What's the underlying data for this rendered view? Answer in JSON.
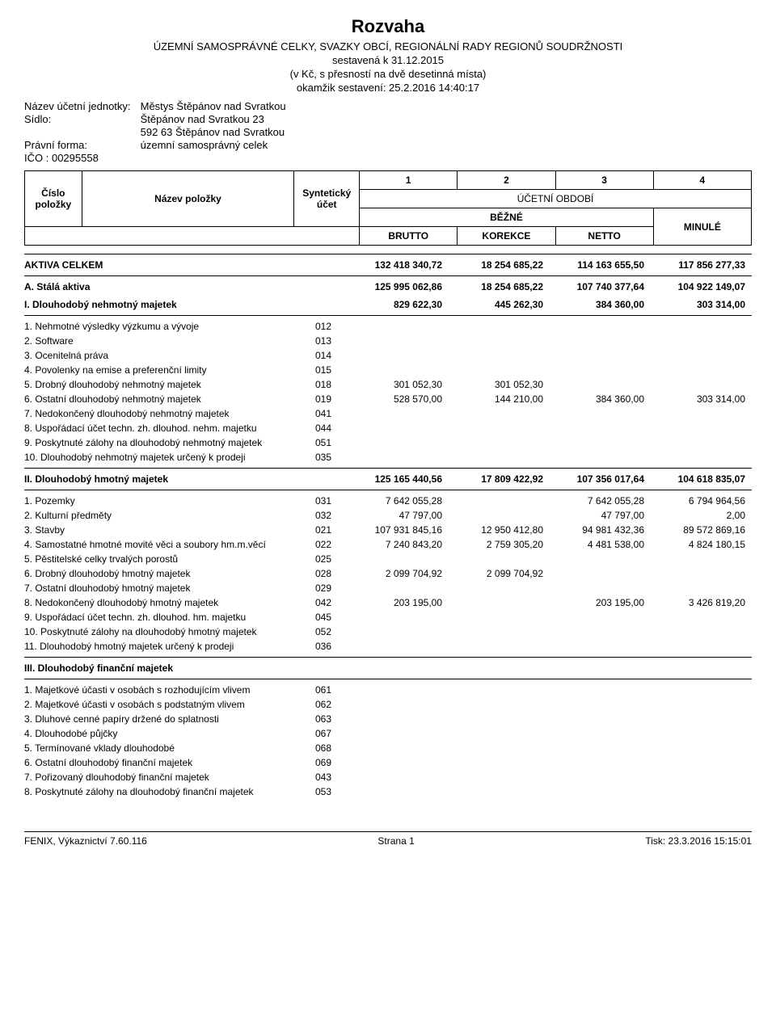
{
  "title": "Rozvaha",
  "subtitle1": "ÚZEMNÍ SAMOSPRÁVNÉ CELKY, SVAZKY OBCÍ, REGIONÁLNÍ RADY REGIONŮ SOUDRŽNOSTI",
  "subtitle2": "sestavená k 31.12.2015",
  "subtitle3": "(v Kč, s přesností na dvě desetinná místa)",
  "subtitle4": "okamžik sestavení: 25.2.2016 14:40:17",
  "meta": {
    "unit_label": "Název účetní jednotky:",
    "unit_value": "Městys Štěpánov nad Svratkou",
    "seat_label": "Sídlo:",
    "seat_value": "Štěpánov nad Svratkou 23",
    "seat_value2": "592 63 Štěpánov nad Svratkou",
    "form_label": "Právní forma:",
    "form_value": "územní samosprávný celek",
    "ico_label": "IČO :",
    "ico_value": "00295558"
  },
  "header": {
    "col_nums": [
      "1",
      "2",
      "3",
      "4"
    ],
    "cislo": "Číslo položky",
    "nazev": "Název položky",
    "synt": "Syntetický účet",
    "period": "ÚČETNÍ OBDOBÍ",
    "bezne": "BĚŽNÉ",
    "minule": "MINULÉ",
    "brutto": "BRUTTO",
    "korekce": "KOREKCE",
    "netto": "NETTO"
  },
  "rows": [
    {
      "type": "total",
      "name": "AKTIVA CELKEM",
      "v1": "132 418 340,72",
      "v2": "18 254 685,22",
      "v3": "114 163 655,50",
      "v4": "117 856 277,33"
    },
    {
      "type": "section",
      "name": "A. Stálá aktiva",
      "v1": "125 995 062,86",
      "v2": "18 254 685,22",
      "v3": "107 740 377,64",
      "v4": "104 922 149,07"
    },
    {
      "type": "subsection",
      "name": "I. Dlouhodobý nehmotný majetek",
      "v1": "829 622,30",
      "v2": "445 262,30",
      "v3": "384 360,00",
      "v4": "303 314,00"
    },
    {
      "type": "hr"
    },
    {
      "type": "item",
      "name": "1. Nehmotné výsledky výzkumu a vývoje",
      "synt": "012"
    },
    {
      "type": "item",
      "name": "2. Software",
      "synt": "013"
    },
    {
      "type": "item",
      "name": "3. Ocenitelná práva",
      "synt": "014"
    },
    {
      "type": "item",
      "name": "4. Povolenky na emise a preferenční limity",
      "synt": "015"
    },
    {
      "type": "item",
      "name": "5. Drobný dlouhodobý nehmotný majetek",
      "synt": "018",
      "v1": "301 052,30",
      "v2": "301 052,30"
    },
    {
      "type": "item",
      "name": "6. Ostatní dlouhodobý nehmotný majetek",
      "synt": "019",
      "v1": "528 570,00",
      "v2": "144 210,00",
      "v3": "384 360,00",
      "v4": "303 314,00"
    },
    {
      "type": "item",
      "name": "7. Nedokončený dlouhodobý nehmotný majetek",
      "synt": "041"
    },
    {
      "type": "item",
      "name": "8. Uspořádací účet techn. zh. dlouhod. nehm. majetku",
      "synt": "044"
    },
    {
      "type": "item",
      "name": "9. Poskytnuté zálohy na dlouhodobý nehmotný majetek",
      "synt": "051"
    },
    {
      "type": "item",
      "name": "10. Dlouhodobý nehmotný majetek určený k prodeji",
      "synt": "035"
    },
    {
      "type": "hr"
    },
    {
      "type": "subsection",
      "name": "II. Dlouhodobý hmotný majetek",
      "v1": "125 165 440,56",
      "v2": "17 809 422,92",
      "v3": "107 356 017,64",
      "v4": "104 618 835,07"
    },
    {
      "type": "hr"
    },
    {
      "type": "item",
      "name": "1. Pozemky",
      "synt": "031",
      "v1": "7 642 055,28",
      "v3": "7 642 055,28",
      "v4": "6 794 964,56"
    },
    {
      "type": "item",
      "name": "2. Kulturní předměty",
      "synt": "032",
      "v1": "47 797,00",
      "v3": "47 797,00",
      "v4": "2,00"
    },
    {
      "type": "item",
      "name": "3. Stavby",
      "synt": "021",
      "v1": "107 931 845,16",
      "v2": "12 950 412,80",
      "v3": "94 981 432,36",
      "v4": "89 572 869,16"
    },
    {
      "type": "item",
      "name": "4. Samostatné hmotné movité věci a soubory hm.m.věcí",
      "synt": "022",
      "v1": "7 240 843,20",
      "v2": "2 759 305,20",
      "v3": "4 481 538,00",
      "v4": "4 824 180,15"
    },
    {
      "type": "item",
      "name": "5. Pěstitelské celky trvalých porostů",
      "synt": "025"
    },
    {
      "type": "item",
      "name": "6. Drobný dlouhodobý hmotný majetek",
      "synt": "028",
      "v1": "2 099 704,92",
      "v2": "2 099 704,92"
    },
    {
      "type": "item",
      "name": "7. Ostatní dlouhodobý hmotný majetek",
      "synt": "029"
    },
    {
      "type": "item",
      "name": "8. Nedokončený dlouhodobý hmotný majetek",
      "synt": "042",
      "v1": "203 195,00",
      "v3": "203 195,00",
      "v4": "3 426 819,20"
    },
    {
      "type": "item",
      "name": "9. Uspořádací účet techn. zh. dlouhod. hm. majetku",
      "synt": "045"
    },
    {
      "type": "item",
      "name": "10. Poskytnuté zálohy na dlouhodobý hmotný majetek",
      "synt": "052"
    },
    {
      "type": "item",
      "name": "11. Dlouhodobý hmotný majetek určený k prodeji",
      "synt": "036"
    },
    {
      "type": "hr"
    },
    {
      "type": "subsection",
      "name": "III. Dlouhodobý finanční majetek"
    },
    {
      "type": "hr"
    },
    {
      "type": "item",
      "name": "1. Majetkové účasti v osobách s rozhodujícím vlivem",
      "synt": "061"
    },
    {
      "type": "item",
      "name": "2. Majetkové účasti v osobách s podstatným vlivem",
      "synt": "062"
    },
    {
      "type": "item",
      "name": "3. Dluhové cenné papíry držené do splatnosti",
      "synt": "063"
    },
    {
      "type": "item",
      "name": "4. Dlouhodobé půjčky",
      "synt": "067"
    },
    {
      "type": "item",
      "name": "5. Termínované vklady dlouhodobé",
      "synt": "068"
    },
    {
      "type": "item",
      "name": "6. Ostatní dlouhodobý finanční majetek",
      "synt": "069"
    },
    {
      "type": "item",
      "name": "7. Pořizovaný dlouhodobý finanční majetek",
      "synt": "043"
    },
    {
      "type": "item",
      "name": "8. Poskytnuté zálohy na dlouhodobý finanční majetek",
      "synt": "053"
    }
  ],
  "footer": {
    "left": "FENIX, Výkaznictví 7.60.116",
    "center": "Strana 1",
    "right": "Tisk: 23.3.2016 15:15:01"
  }
}
